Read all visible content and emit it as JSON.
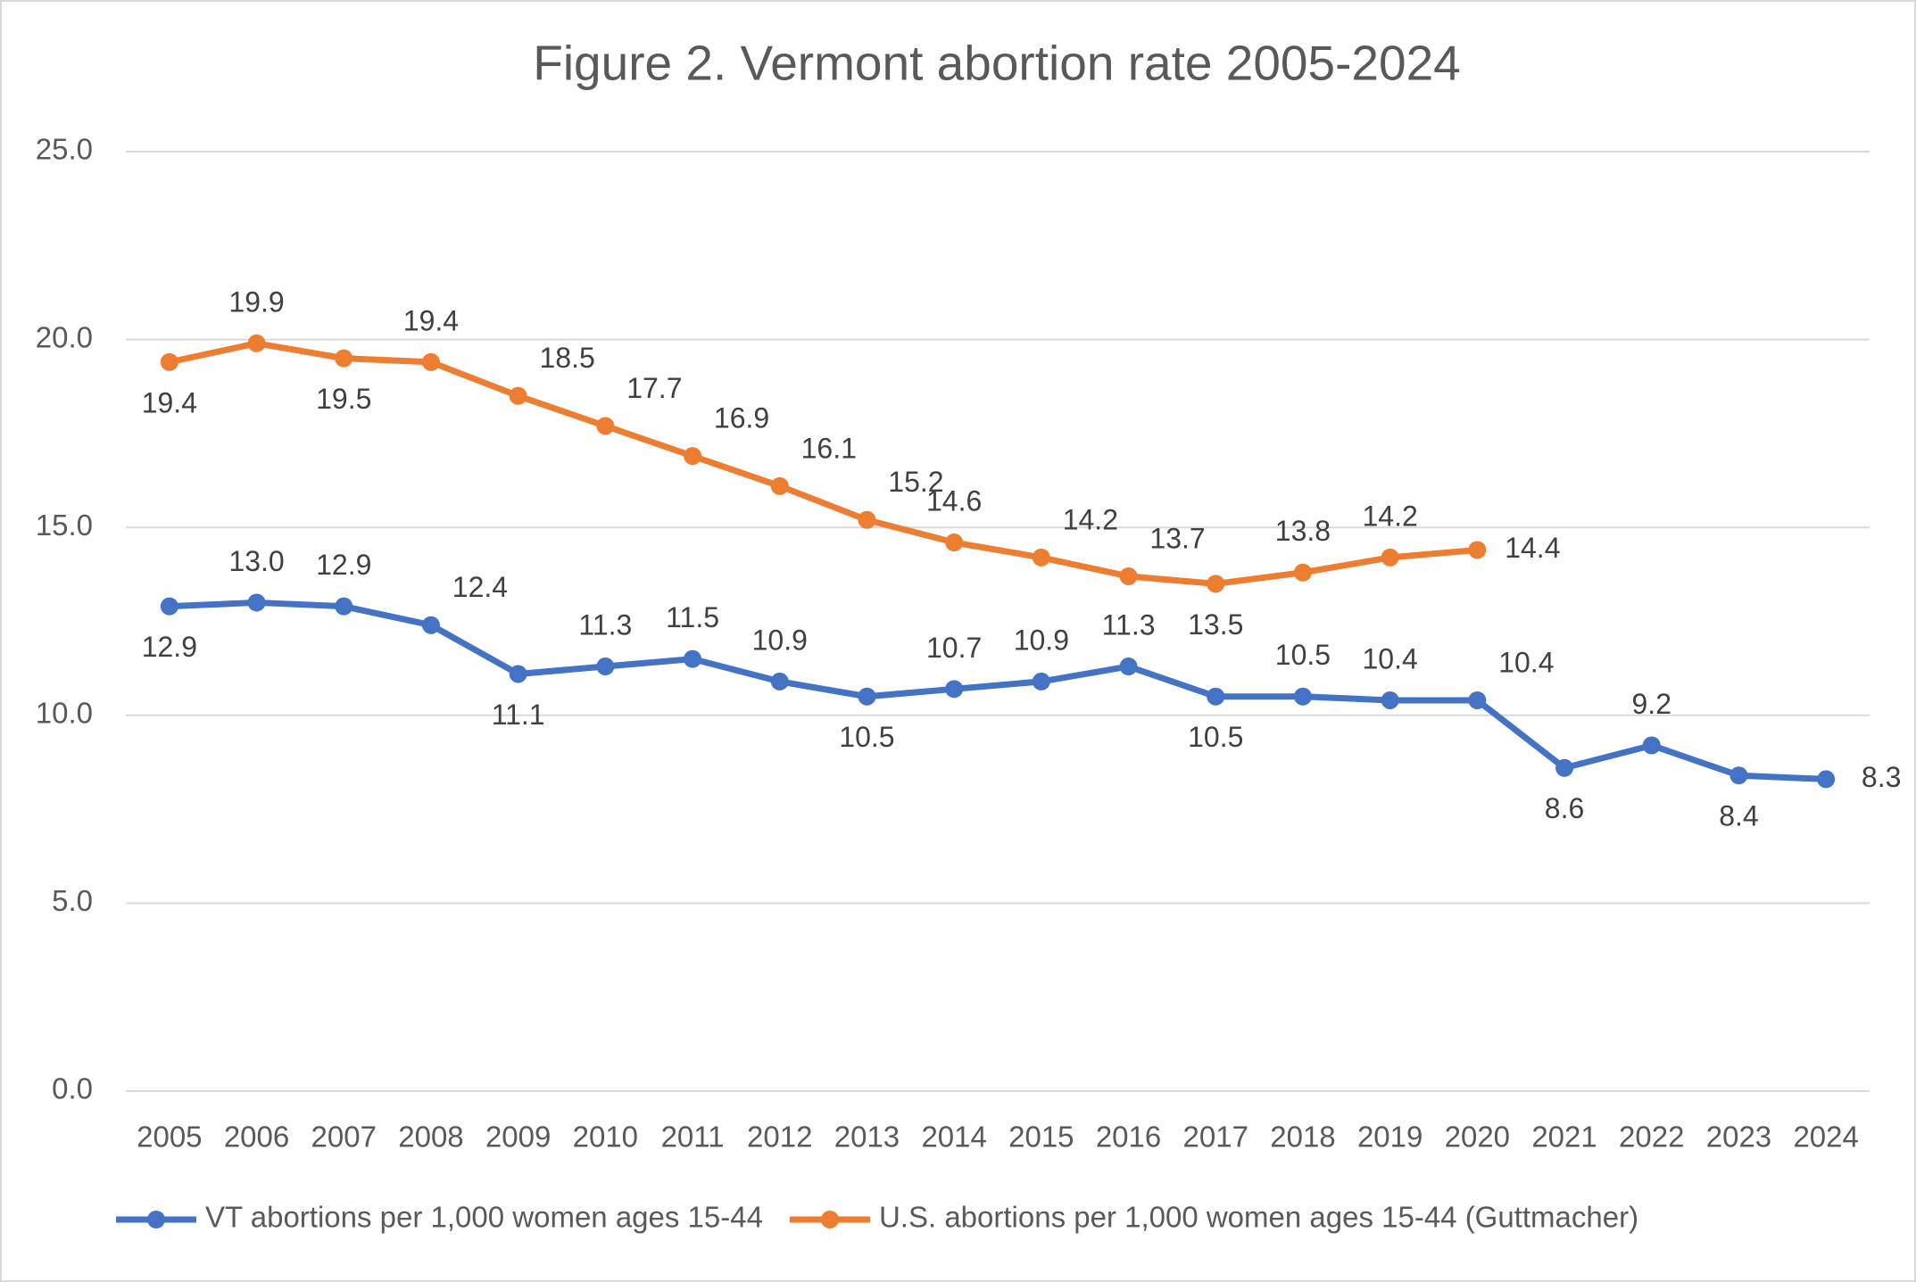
{
  "chart_data": {
    "type": "line",
    "title": "Figure 2. Vermont abortion rate 2005-2024",
    "categories": [
      "2005",
      "2006",
      "2007",
      "2008",
      "2009",
      "2010",
      "2011",
      "2012",
      "2013",
      "2014",
      "2015",
      "2016",
      "2017",
      "2018",
      "2019",
      "2020",
      "2021",
      "2022",
      "2023",
      "2024"
    ],
    "series": [
      {
        "name": "VT abortions per 1,000 women ages 15-44",
        "color": "#4472c4",
        "values": [
          12.9,
          13.0,
          12.9,
          12.4,
          11.1,
          11.3,
          11.5,
          10.9,
          10.5,
          10.7,
          10.9,
          11.3,
          10.5,
          10.5,
          10.4,
          10.4,
          8.6,
          9.2,
          8.4,
          8.3
        ],
        "value_labels": [
          "12.9",
          "13.0",
          "12.9",
          "12.4",
          "11.1",
          "11.3",
          "11.5",
          "10.9",
          "10.5",
          "10.7",
          "10.9",
          "11.3",
          "10.5",
          "10.5",
          "10.4",
          "10.4",
          "8.6",
          "9.2",
          "8.4",
          "8.3"
        ]
      },
      {
        "name": "U.S. abortions per 1,000 women ages 15-44 (Guttmacher)",
        "color": "#ed7d31",
        "values": [
          19.4,
          19.9,
          19.5,
          19.4,
          18.5,
          17.7,
          16.9,
          16.1,
          15.2,
          14.6,
          14.2,
          13.7,
          13.5,
          13.8,
          14.2,
          14.4,
          null,
          null,
          null,
          null
        ],
        "value_labels": [
          "19.4",
          "19.9",
          "19.5",
          "19.4",
          "18.5",
          "17.7",
          "16.9",
          "16.1",
          "15.2",
          "14.6",
          "14.2",
          "13.7",
          "13.5",
          "13.8",
          "14.2",
          "14.4",
          null,
          null,
          null,
          null
        ]
      }
    ],
    "ylim": [
      0,
      25
    ],
    "yticks": [
      {
        "value": 0,
        "label": "0.0"
      },
      {
        "value": 5,
        "label": "5.0"
      },
      {
        "value": 10,
        "label": "10.0"
      },
      {
        "value": 15,
        "label": "15.0"
      },
      {
        "value": 20,
        "label": "20.0"
      },
      {
        "value": 25,
        "label": "25.0"
      }
    ],
    "grid": true,
    "legend": "bottom"
  }
}
